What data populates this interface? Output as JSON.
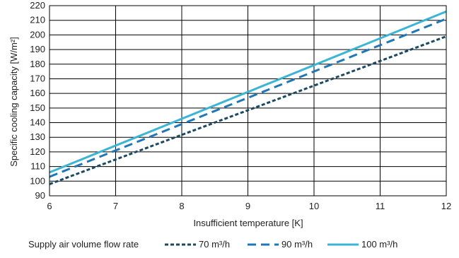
{
  "chart_data": {
    "type": "line",
    "xlabel": "Insufficient temperature [K]",
    "ylabel": "Specific cooling capacity [W/m²]",
    "xlim": [
      6,
      12
    ],
    "ylim": [
      90,
      220
    ],
    "x_ticks": [
      6,
      7,
      8,
      9,
      10,
      11,
      12
    ],
    "y_ticks": [
      90,
      100,
      110,
      120,
      130,
      140,
      150,
      160,
      170,
      180,
      190,
      200,
      210,
      220
    ],
    "grid": true,
    "legend_title": "Supply air volume flow rate",
    "legend_position": "bottom",
    "series": [
      {
        "name": "70 m³/h",
        "color": "#1a4a63",
        "dash": "dotted-dash",
        "x": [
          6,
          12
        ],
        "y": [
          98,
          199
        ]
      },
      {
        "name": "90 m³/h",
        "color": "#1f77b8",
        "dash": "long-dash",
        "x": [
          6,
          12
        ],
        "y": [
          103,
          211
        ]
      },
      {
        "name": "100 m³/h",
        "color": "#3bb5d6",
        "dash": "solid",
        "x": [
          6,
          12
        ],
        "y": [
          106,
          216
        ]
      }
    ]
  }
}
